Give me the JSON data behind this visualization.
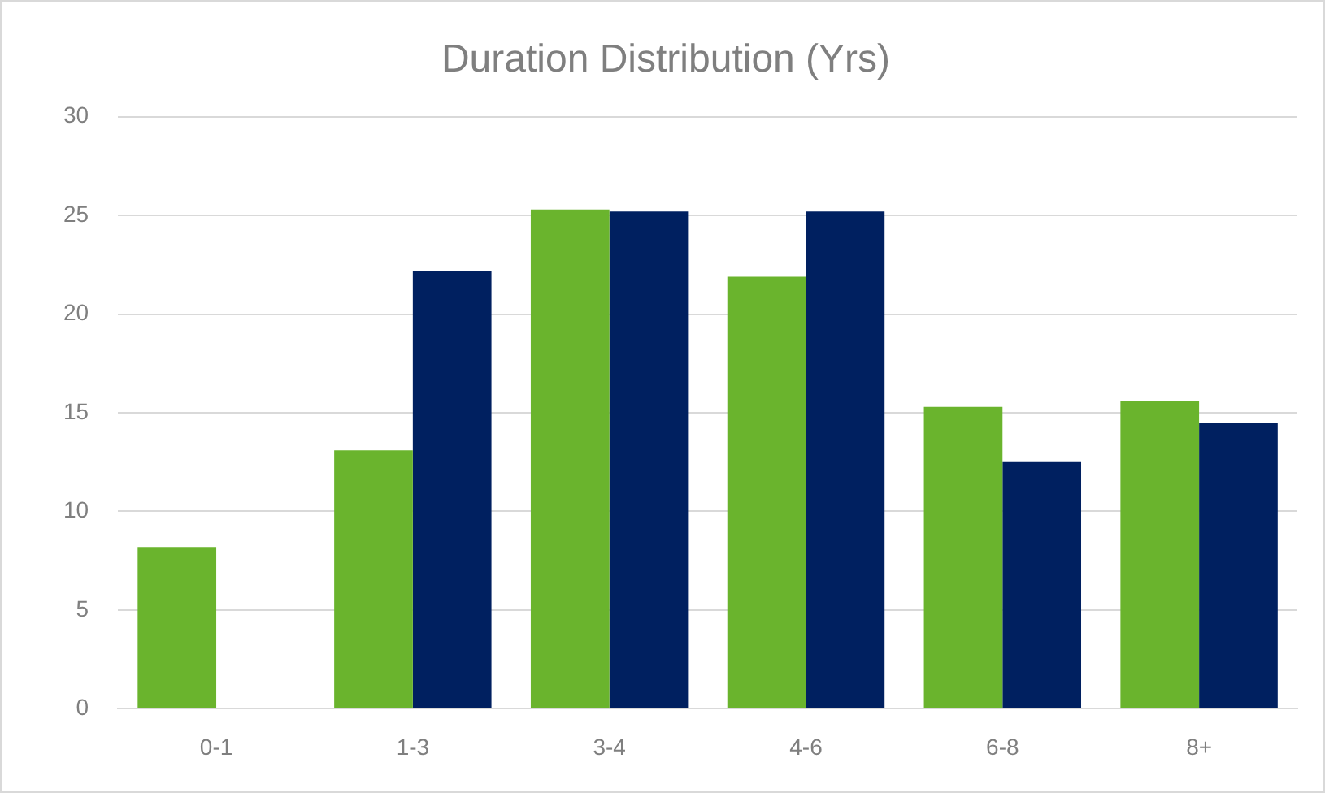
{
  "chart_data": {
    "type": "bar",
    "title": "Duration Distribution (Yrs)",
    "categories": [
      "0-1",
      "1-3",
      "3-4",
      "4-6",
      "6-8",
      "8+"
    ],
    "series": [
      {
        "color": "#6ab42d",
        "values": [
          8.2,
          13.1,
          25.3,
          21.9,
          15.3,
          15.6
        ]
      },
      {
        "color": "#002060",
        "values": [
          0,
          22.2,
          25.2,
          25.2,
          12.5,
          14.5
        ]
      }
    ],
    "ylim": [
      0,
      30
    ],
    "yticks": [
      0,
      5,
      10,
      15,
      20,
      25,
      30
    ],
    "grid": "y",
    "legend": false
  }
}
